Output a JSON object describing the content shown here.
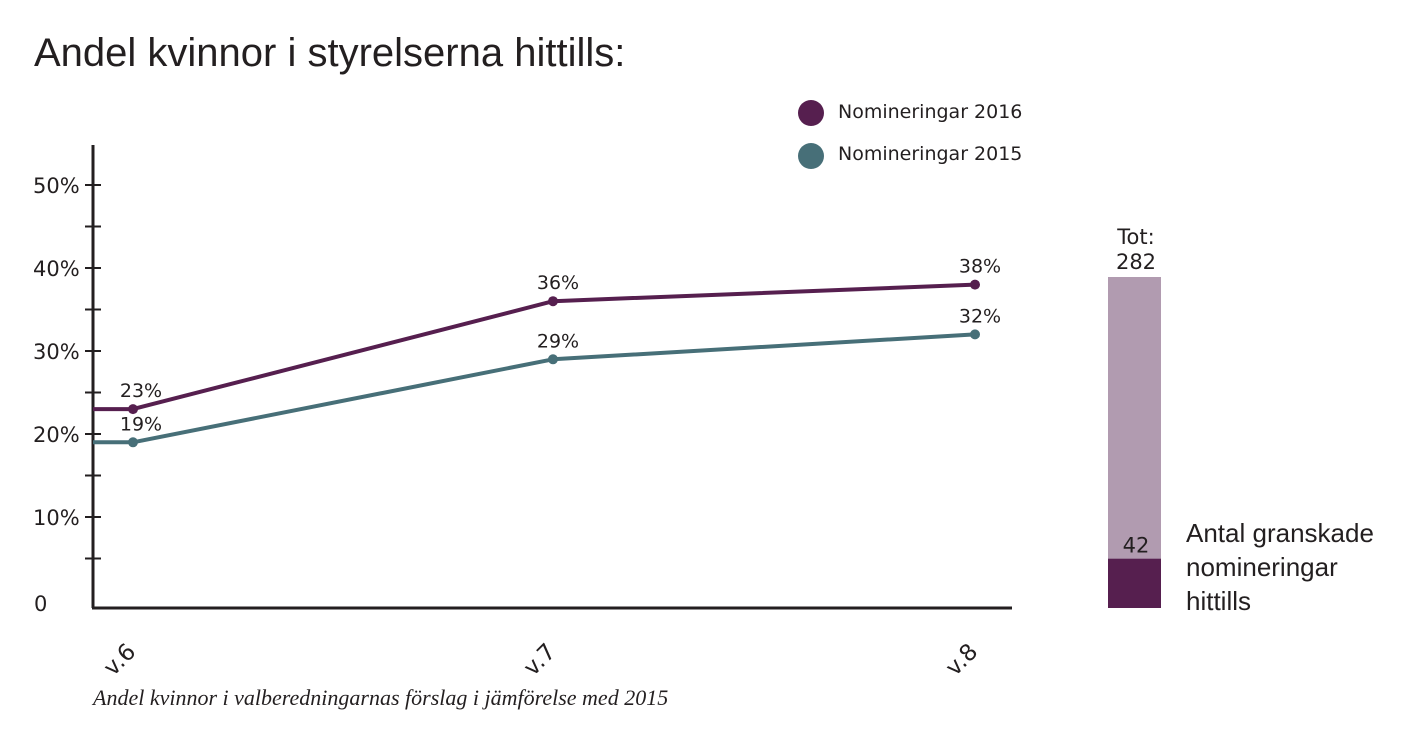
{
  "chart_data": [
    {
      "type": "line",
      "title": "Andel kvinnor i styrelserna hittills:",
      "caption": "Andel kvinnor i valberedningarnas förslag i jämförelse med 2015",
      "categories": [
        "v.6",
        "v.7",
        "v.8"
      ],
      "y_ticks": [
        "0",
        "10%",
        "20%",
        "30%",
        "40%",
        "50%"
      ],
      "ylim": [
        0,
        55
      ],
      "grid": false,
      "legend_position": "top-right",
      "series": [
        {
          "name": "Nomineringar 2016",
          "color": "#561f4f",
          "values": [
            23,
            36,
            38
          ],
          "labels": [
            "23%",
            "36%",
            "38%"
          ]
        },
        {
          "name": "Nomineringar 2015",
          "color": "#476f78",
          "values": [
            19,
            29,
            32
          ],
          "labels": [
            "19%",
            "29%",
            "32%"
          ]
        }
      ]
    },
    {
      "type": "bar",
      "total_label_line1": "Tot:",
      "total_label_line2": "282",
      "total": 282,
      "part": 42,
      "part_label": "42",
      "total_color": "#b19bb0",
      "part_color": "#561f4f",
      "description": [
        "Antal granskade",
        "nomineringar",
        "hittills"
      ]
    }
  ]
}
